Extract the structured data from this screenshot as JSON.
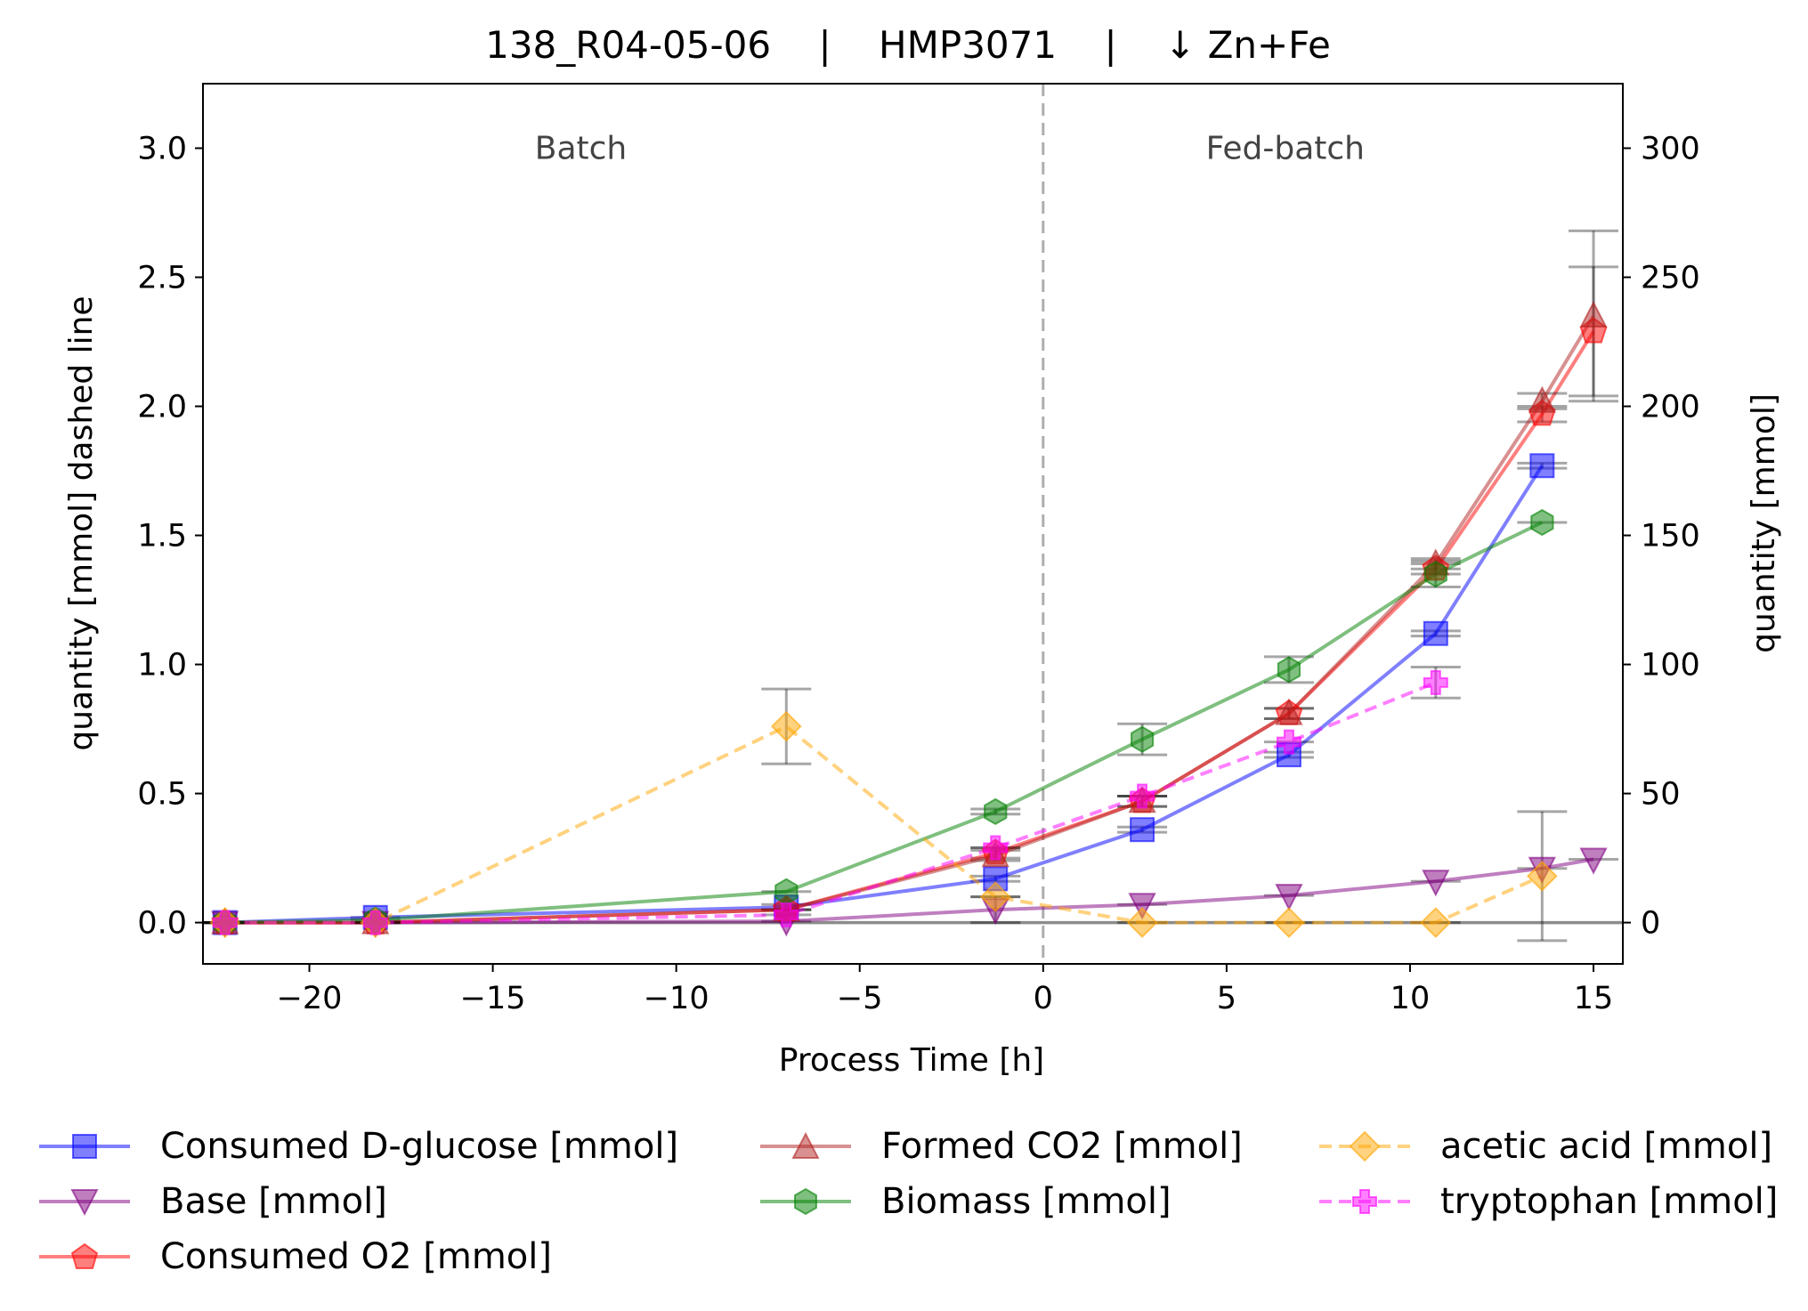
{
  "chart_data": {
    "type": "line",
    "title": "138_R04-05-06    |    HMP3071    |    ↓ Zn+Fe",
    "xlabel": "Process Time [h]",
    "ylabel_left": "quantity [mmol] dashed line",
    "ylabel_right": "quantity [mmol]",
    "xlim": [
      -22.9,
      15.8
    ],
    "ylim_left": [
      -0.16,
      3.25
    ],
    "ylim_right": [
      -16,
      325
    ],
    "x_ticks": [
      -20,
      -15,
      -10,
      -5,
      0,
      5,
      10,
      15
    ],
    "x_tick_labels": [
      "−20",
      "−15",
      "−10",
      "−5",
      "0",
      "5",
      "10",
      "15"
    ],
    "y_left_ticks": [
      0.0,
      0.5,
      1.0,
      1.5,
      2.0,
      2.5,
      3.0
    ],
    "y_left_tick_labels": [
      "0.0",
      "0.5",
      "1.0",
      "1.5",
      "2.0",
      "2.5",
      "3.0"
    ],
    "y_right_ticks": [
      0,
      50,
      100,
      150,
      200,
      250,
      300
    ],
    "y_right_tick_labels": [
      "0",
      "50",
      "100",
      "150",
      "200",
      "250",
      "300"
    ],
    "phase_divider_x": 0,
    "phase_labels": [
      {
        "text": "Batch",
        "x": -12.6,
        "y_right": 300
      },
      {
        "text": "Fed-batch",
        "x": 6.6,
        "y_right": 300
      }
    ],
    "grid": false,
    "legend_position": "bottom",
    "series": [
      {
        "name": "Consumed D-glucose [mmol]",
        "axis": "right",
        "color": "#0000ff",
        "marker": "square",
        "dashed": false,
        "x": [
          -22.3,
          -18.2,
          -7.0,
          -1.3,
          2.7,
          6.7,
          10.7,
          13.6
        ],
        "y": [
          0,
          2,
          6,
          17,
          36,
          65,
          112,
          177
        ],
        "err": [
          0,
          0,
          1,
          1,
          1,
          1,
          1,
          1
        ]
      },
      {
        "name": "Base [mmol]",
        "axis": "right",
        "color": "#800080",
        "marker": "triangle-down",
        "dashed": false,
        "x": [
          -22.3,
          -18.2,
          -7.0,
          -1.3,
          2.7,
          6.7,
          10.7,
          13.6,
          15.0
        ],
        "y": [
          0,
          0,
          0.5,
          5,
          7,
          10.5,
          16,
          21,
          24.5
        ],
        "err": [
          0,
          0,
          0,
          5,
          0,
          0,
          0,
          0,
          0
        ]
      },
      {
        "name": "Consumed O2 [mmol]",
        "axis": "right",
        "color": "#ff0000",
        "marker": "pentagon",
        "dashed": false,
        "x": [
          -22.3,
          -18.2,
          -7.0,
          -1.3,
          2.7,
          6.7,
          10.7,
          13.6,
          15.0
        ],
        "y": [
          0,
          0,
          5,
          27,
          47,
          81,
          137,
          197,
          229
        ],
        "err": [
          0,
          0,
          0,
          2,
          2,
          2,
          2,
          3,
          25
        ]
      },
      {
        "name": "Formed CO2 [mmol]",
        "axis": "right",
        "color": "#b22222",
        "marker": "triangle-up",
        "dashed": false,
        "x": [
          -22.3,
          -18.2,
          -7.0,
          -1.3,
          2.7,
          6.7,
          10.7,
          13.6,
          15.0
        ],
        "y": [
          0,
          0,
          5,
          26,
          47,
          81,
          139,
          202,
          235
        ],
        "err": [
          0,
          0,
          0,
          2,
          2,
          2,
          2,
          3,
          33
        ]
      },
      {
        "name": "Biomass [mmol]",
        "axis": "right",
        "color": "#008000",
        "marker": "hexagon",
        "dashed": false,
        "x": [
          -22.3,
          -18.2,
          -7.0,
          -1.3,
          2.7,
          6.7,
          10.7,
          13.6
        ],
        "y": [
          0,
          1,
          12,
          43,
          71,
          98,
          135,
          155
        ],
        "err": [
          0,
          0,
          0,
          1,
          6,
          5,
          5,
          0
        ]
      },
      {
        "name": "acetic acid [mmol]",
        "axis": "left",
        "color": "#ffa500",
        "marker": "diamond",
        "dashed": true,
        "x": [
          -22.3,
          -18.2,
          -7.0,
          -1.3,
          2.7,
          6.7,
          10.7,
          13.6
        ],
        "y": [
          0,
          0,
          0.76,
          0.1,
          0.0,
          0.0,
          0.0,
          0.18
        ],
        "err": [
          0,
          0,
          0.145,
          0,
          0,
          0,
          0,
          0.25
        ]
      },
      {
        "name": "tryptophan [mmol]",
        "axis": "left",
        "color": "#ff00ff",
        "marker": "plus",
        "dashed": true,
        "x": [
          -22.3,
          -18.2,
          -7.0,
          -1.3,
          2.7,
          6.7,
          10.7
        ],
        "y": [
          0,
          0,
          0.03,
          0.29,
          0.49,
          0.7,
          0.93
        ],
        "err": [
          0,
          0,
          0,
          0,
          0,
          0,
          0.06
        ]
      }
    ]
  }
}
